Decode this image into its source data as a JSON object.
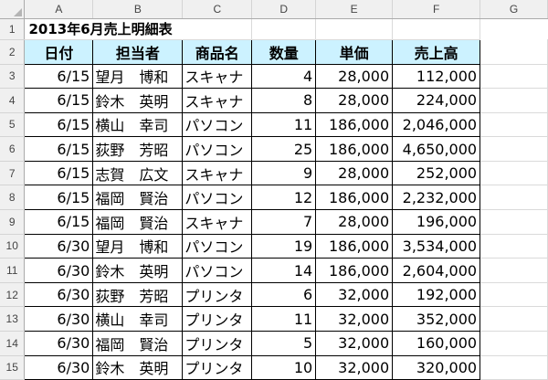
{
  "columns": [
    "A",
    "B",
    "C",
    "D",
    "E",
    "F",
    "G"
  ],
  "row_numbers": [
    "1",
    "2",
    "3",
    "4",
    "5",
    "6",
    "7",
    "8",
    "9",
    "10",
    "11",
    "12",
    "13",
    "14",
    "15"
  ],
  "title": "2013年6月売上明細表",
  "headers": [
    "日付",
    "担当者",
    "商品名",
    "数量",
    "単価",
    "売上高"
  ],
  "rows": [
    [
      "6/15",
      "望月　博和",
      "スキャナ",
      "4",
      "28,000",
      "112,000"
    ],
    [
      "6/15",
      "鈴木　英明",
      "スキャナ",
      "8",
      "28,000",
      "224,000"
    ],
    [
      "6/15",
      "横山　幸司",
      "パソコン",
      "11",
      "186,000",
      "2,046,000"
    ],
    [
      "6/15",
      "荻野　芳昭",
      "パソコン",
      "25",
      "186,000",
      "4,650,000"
    ],
    [
      "6/15",
      "志賀　広文",
      "スキャナ",
      "9",
      "28,000",
      "252,000"
    ],
    [
      "6/15",
      "福岡　賢治",
      "パソコン",
      "12",
      "186,000",
      "2,232,000"
    ],
    [
      "6/15",
      "福岡　賢治",
      "スキャナ",
      "7",
      "28,000",
      "196,000"
    ],
    [
      "6/30",
      "望月　博和",
      "パソコン",
      "19",
      "186,000",
      "3,534,000"
    ],
    [
      "6/30",
      "鈴木　英明",
      "パソコン",
      "14",
      "186,000",
      "2,604,000"
    ],
    [
      "6/30",
      "荻野　芳昭",
      "プリンタ",
      "6",
      "32,000",
      "192,000"
    ],
    [
      "6/30",
      "横山　幸司",
      "プリンタ",
      "11",
      "32,000",
      "352,000"
    ],
    [
      "6/30",
      "福岡　賢治",
      "プリンタ",
      "5",
      "32,000",
      "160,000"
    ],
    [
      "6/30",
      "鈴木　英明",
      "プリンタ",
      "10",
      "32,000",
      "320,000"
    ]
  ],
  "colors": {
    "header_fill": "#ccf2ff",
    "header_bg": "#f0f0f0",
    "gridline": "#dadada"
  }
}
